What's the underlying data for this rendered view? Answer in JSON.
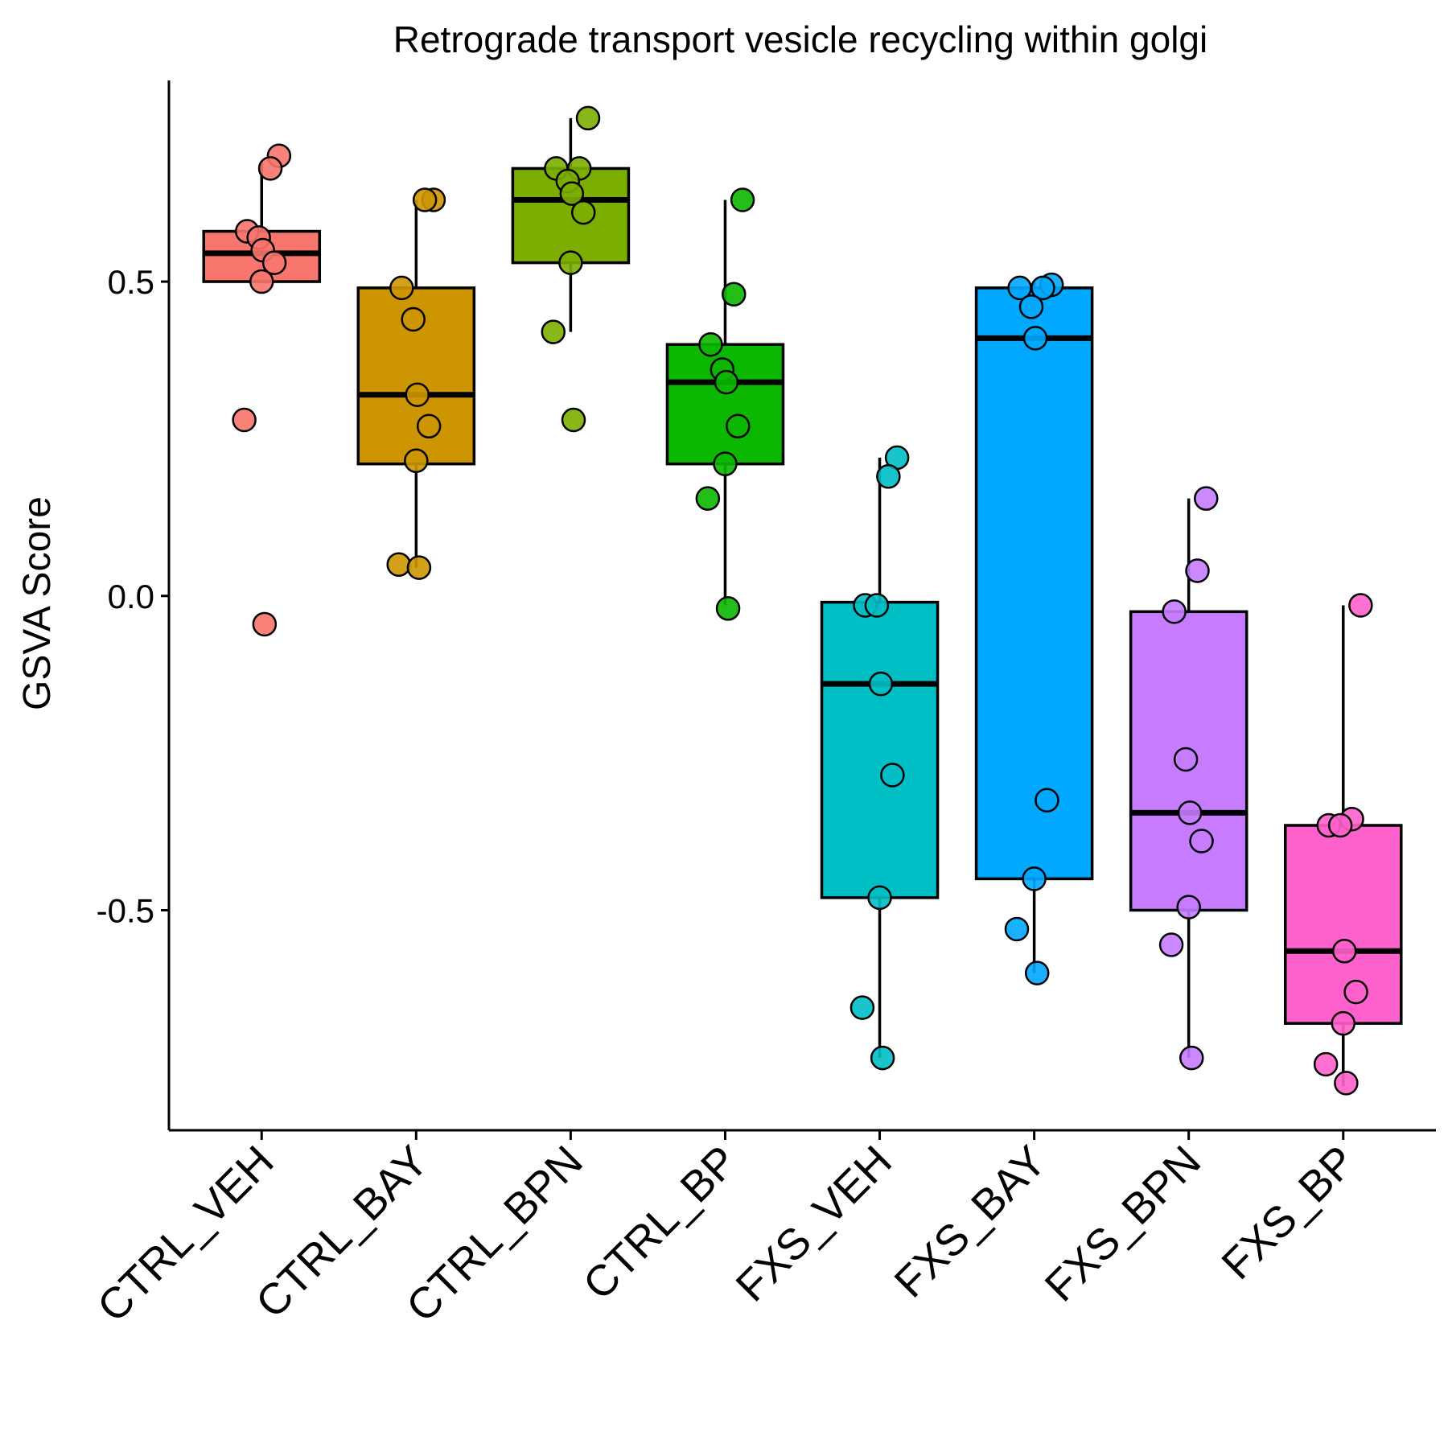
{
  "chart_data": {
    "type": "box",
    "title": "Retrograde transport vesicle recycling within golgi",
    "xlabel": "",
    "ylabel": "GSVA Score",
    "ylim": [
      -0.85,
      0.82
    ],
    "yticks": [
      0.5,
      0.0,
      -0.5
    ],
    "ytick_labels": [
      "0.5",
      "0.0",
      "-0.5"
    ],
    "categories": [
      "CTRL_VEH",
      "CTRL_BAY",
      "CTRL_BPN",
      "CTRL_BP",
      "FXS_VEH",
      "FXS_BAY",
      "FXS_BPN",
      "FXS_BP"
    ],
    "legend": "none",
    "grid": false,
    "series": [
      {
        "category": "CTRL_VEH",
        "color": "#F8766D",
        "box": {
          "whisker_low": 0.5,
          "q1": 0.5,
          "median": 0.545,
          "q3": 0.58,
          "whisker_high": 0.69
        },
        "points": [
          0.7,
          0.68,
          0.58,
          0.57,
          0.55,
          0.53,
          0.5,
          0.28,
          -0.045
        ]
      },
      {
        "category": "CTRL_BAY",
        "color": "#CD9600",
        "box": {
          "whisker_low": 0.045,
          "q1": 0.21,
          "median": 0.32,
          "q3": 0.49,
          "whisker_high": 0.63
        },
        "points": [
          0.63,
          0.63,
          0.49,
          0.44,
          0.32,
          0.27,
          0.215,
          0.05,
          0.045
        ]
      },
      {
        "category": "CTRL_BPN",
        "color": "#7CAE00",
        "box": {
          "whisker_low": 0.42,
          "q1": 0.53,
          "median": 0.63,
          "q3": 0.68,
          "whisker_high": 0.76
        },
        "points": [
          0.76,
          0.68,
          0.68,
          0.66,
          0.64,
          0.61,
          0.53,
          0.42,
          0.28
        ]
      },
      {
        "category": "CTRL_BP",
        "color": "#0CB702",
        "box": {
          "whisker_low": -0.015,
          "q1": 0.21,
          "median": 0.34,
          "q3": 0.4,
          "whisker_high": 0.63
        },
        "points": [
          0.63,
          0.48,
          0.4,
          0.36,
          0.34,
          0.27,
          0.21,
          0.155,
          -0.02
        ]
      },
      {
        "category": "FXS_VEH",
        "color": "#00BFC4",
        "box": {
          "whisker_low": -0.735,
          "q1": -0.48,
          "median": -0.14,
          "q3": -0.01,
          "whisker_high": 0.22
        },
        "points": [
          0.22,
          0.19,
          -0.015,
          -0.015,
          -0.14,
          -0.285,
          -0.48,
          -0.655,
          -0.735
        ]
      },
      {
        "category": "FXS_BAY",
        "color": "#00A9FF",
        "box": {
          "whisker_low": -0.6,
          "q1": -0.45,
          "median": 0.41,
          "q3": 0.49,
          "whisker_high": 0.5
        },
        "points": [
          0.495,
          0.49,
          0.49,
          0.46,
          0.41,
          -0.325,
          -0.45,
          -0.53,
          -0.6
        ]
      },
      {
        "category": "FXS_BPN",
        "color": "#C77CFF",
        "box": {
          "whisker_low": -0.735,
          "q1": -0.5,
          "median": -0.345,
          "q3": -0.025,
          "whisker_high": 0.155
        },
        "points": [
          0.155,
          0.04,
          -0.025,
          -0.26,
          -0.345,
          -0.39,
          -0.495,
          -0.555,
          -0.735
        ]
      },
      {
        "category": "FXS_BP",
        "color": "#FF61CC",
        "box": {
          "whisker_low": -0.78,
          "q1": -0.68,
          "median": -0.565,
          "q3": -0.365,
          "whisker_high": -0.015
        },
        "points": [
          -0.015,
          -0.355,
          -0.365,
          -0.365,
          -0.565,
          -0.63,
          -0.68,
          -0.745,
          -0.775
        ]
      }
    ]
  }
}
